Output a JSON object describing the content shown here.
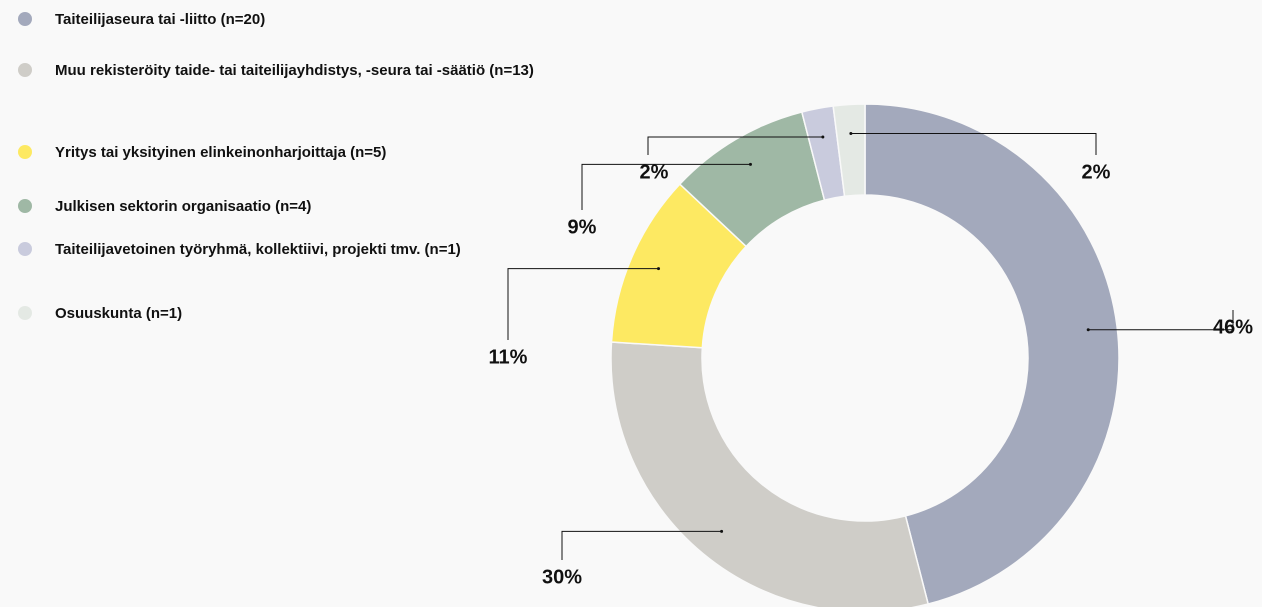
{
  "chart_data": {
    "type": "donut",
    "categories": [
      "Taiteilijaseura tai -liitto (n=20)",
      "Muu rekisteröity taide- tai taiteilijayhdistys, -seura tai -säätiö (n=13)",
      "Yritys tai yksityinen elinkeinonharjoittaja (n=5)",
      "Julkisen sektorin organisaatio (n=4)",
      "Taiteilijavetoinen työryhmä, kollektiivi, projekti tmv. (n=1)",
      "Osuuskunta (n=1)"
    ],
    "values": [
      46,
      30,
      11,
      9,
      2,
      2
    ],
    "value_labels": [
      "46%",
      "30%",
      "11%",
      "9%",
      "2%",
      "2%"
    ],
    "colors": [
      "#a3a9bc",
      "#cfcdc8",
      "#fde962",
      "#9fb8a5",
      "#c9cbdd",
      "#e4e9e4"
    ]
  }
}
